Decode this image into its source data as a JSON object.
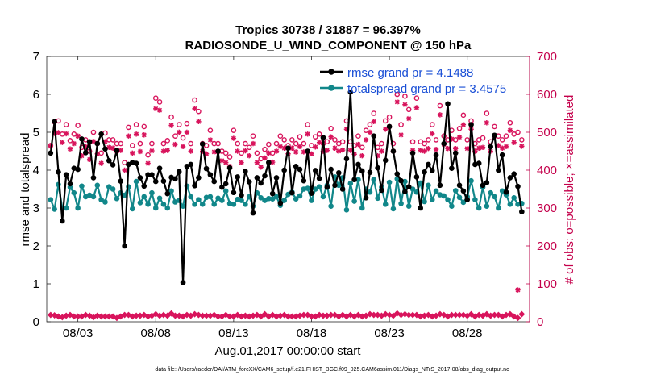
{
  "chart_data": {
    "type": "line",
    "title": "Tropics 30738 / 31887 = 96.397%",
    "subtitle": "RADIOSONDE_U_WIND_COMPONENT @ 150 hPa",
    "xlabel": "Aug.01,2017 00:00:00 start",
    "ylabel": "rmse and totalspread",
    "ylabel_right": "# of obs: o=possible; ×=assimilated",
    "footnote": "data file: /Users/raeder/DAI/ATM_forcXX/CAM6_setup/f.e21.FHIST_BGC.f09_025.CAM6assim.011/Diags_NTrS_2017-08/obs_diag_output.nc",
    "xlim": [
      1.0,
      32.0
    ],
    "ylim": [
      0,
      7
    ],
    "ylim_right": [
      0,
      700
    ],
    "x_ticks": [
      3,
      8,
      13,
      18,
      23,
      28
    ],
    "x_tick_labels": [
      "08/03",
      "08/08",
      "08/13",
      "08/18",
      "08/23",
      "08/28"
    ],
    "y_ticks": [
      0,
      1,
      2,
      3,
      4,
      5,
      6,
      7
    ],
    "y_tick_labels": [
      "0",
      "1",
      "2",
      "3",
      "4",
      "5",
      "6",
      "7"
    ],
    "y_ticks_right": [
      0,
      100,
      200,
      300,
      400,
      500,
      600,
      700
    ],
    "y_tick_labels_right": [
      "0",
      "100",
      "200",
      "300",
      "400",
      "500",
      "600",
      "700"
    ],
    "grid": false,
    "legend_position": "top-right",
    "colors": {
      "rmse": "#000000",
      "totalspread": "#11878a",
      "obs": "#d8145c",
      "legend_text": "#1a4fd6",
      "right_axis": "#c4004b"
    },
    "x": [
      1.25,
      1.5,
      1.75,
      2.0,
      2.25,
      2.5,
      2.75,
      3.0,
      3.25,
      3.5,
      3.75,
      4.0,
      4.25,
      4.5,
      4.75,
      5.0,
      5.25,
      5.5,
      5.75,
      6.0,
      6.25,
      6.5,
      6.75,
      7.0,
      7.25,
      7.5,
      7.75,
      8.0,
      8.25,
      8.5,
      8.75,
      9.0,
      9.25,
      9.5,
      9.75,
      10.0,
      10.25,
      10.5,
      10.75,
      11.0,
      11.25,
      11.5,
      11.75,
      12.0,
      12.25,
      12.5,
      12.75,
      13.0,
      13.25,
      13.5,
      13.75,
      14.0,
      14.25,
      14.5,
      14.75,
      15.0,
      15.25,
      15.5,
      15.75,
      16.0,
      16.25,
      16.5,
      16.75,
      17.0,
      17.25,
      17.5,
      17.75,
      18.0,
      18.25,
      18.5,
      18.75,
      19.0,
      19.25,
      19.5,
      19.75,
      20.0,
      20.25,
      20.5,
      20.75,
      21.0,
      21.25,
      21.5,
      21.75,
      22.0,
      22.25,
      22.5,
      22.75,
      23.0,
      23.25,
      23.5,
      23.75,
      24.0,
      24.25,
      24.5,
      24.75,
      25.0,
      25.25,
      25.5,
      25.75,
      26.0,
      26.25,
      26.5,
      26.75,
      27.0,
      27.25,
      27.5,
      27.75,
      28.0,
      28.25,
      28.5,
      28.75,
      29.0,
      29.25,
      29.5,
      29.75,
      30.0,
      30.25,
      30.5,
      30.75,
      31.0,
      31.25,
      31.5
    ],
    "series": [
      {
        "name": "rmse grand pr = 4.1488",
        "marker": "circle",
        "values": [
          4.45,
          5.28,
          3.95,
          2.66,
          3.88,
          3.64,
          4.05,
          4.02,
          4.82,
          4.46,
          4.75,
          3.8,
          4.7,
          4.95,
          4.56,
          4.25,
          4.14,
          4.52,
          3.71,
          2.0,
          4.15,
          4.2,
          4.18,
          3.8,
          3.58,
          3.88,
          3.88,
          3.7,
          4.05,
          3.71,
          3.38,
          3.81,
          3.77,
          3.96,
          1.03,
          4.1,
          4.15,
          3.59,
          3.8,
          4.69,
          4.04,
          3.88,
          3.7,
          4.5,
          3.55,
          3.64,
          4.06,
          3.41,
          3.82,
          3.34,
          3.97,
          3.69,
          2.87,
          3.8,
          3.66,
          3.85,
          4.2,
          3.38,
          3.8,
          3.13,
          4.0,
          4.58,
          3.4,
          4.1,
          4.02,
          3.72,
          4.5,
          3.39,
          3.99,
          3.78,
          4.86,
          3.55,
          4.02,
          3.6,
          3.93,
          3.5,
          4.3,
          6.06,
          3.75,
          4.15,
          3.98,
          3.27,
          3.94,
          4.9,
          4.06,
          3.47,
          4.26,
          5.15,
          4.5,
          3.9,
          3.72,
          3.43,
          3.56,
          4.45,
          3.82,
          3.0,
          3.95,
          4.15,
          3.99,
          4.4,
          3.6,
          4.7,
          5.75,
          4.05,
          4.45,
          3.6,
          3.45,
          3.22,
          5.2,
          4.15,
          4.18,
          3.6,
          3.67,
          4.62,
          4.92,
          4.0,
          4.4,
          3.42,
          3.8,
          3.9,
          3.57,
          2.9
        ]
      },
      {
        "name": "totalspread grand pr = 3.4575",
        "marker": "circle",
        "values": [
          3.22,
          2.97,
          3.62,
          3.0,
          3.0,
          3.55,
          3.4,
          3.0,
          3.58,
          3.3,
          3.34,
          3.3,
          3.6,
          3.22,
          3.16,
          3.56,
          3.5,
          3.25,
          3.4,
          3.34,
          3.56,
          2.98,
          3.7,
          3.14,
          3.3,
          3.1,
          3.4,
          3.0,
          3.26,
          3.1,
          3.0,
          3.45,
          3.16,
          3.2,
          3.05,
          3.58,
          3.3,
          3.1,
          3.22,
          3.1,
          3.28,
          3.3,
          3.1,
          3.26,
          3.2,
          3.45,
          3.12,
          3.1,
          3.23,
          3.2,
          3.1,
          3.3,
          3.05,
          3.4,
          3.27,
          3.2,
          3.25,
          3.24,
          3.3,
          3.07,
          3.2,
          3.36,
          3.42,
          3.24,
          3.32,
          3.5,
          3.52,
          3.2,
          3.5,
          3.56,
          3.3,
          3.6,
          3.05,
          3.82,
          3.6,
          3.8,
          2.95,
          3.65,
          3.18,
          3.75,
          3.0,
          3.5,
          3.42,
          3.75,
          3.26,
          3.55,
          3.1,
          3.68,
          2.98,
          3.77,
          3.12,
          3.7,
          3.05,
          3.5,
          3.42,
          3.66,
          3.17,
          3.6,
          3.22,
          3.45,
          3.35,
          3.32,
          3.22,
          3.05,
          3.46,
          3.28,
          3.15,
          3.3,
          3.72,
          3.22,
          3.0,
          3.55,
          3.05,
          3.4,
          3.3,
          3.0,
          3.45,
          3.35,
          3.1,
          3.27,
          3.1,
          3.12
        ]
      }
    ],
    "obs_possible": [
      465,
      527,
      530,
      495,
      520,
      478,
      495,
      518,
      460,
      480,
      450,
      500,
      470,
      445,
      498,
      480,
      480,
      470,
      470,
      420,
      513,
      465,
      520,
      470,
      515,
      440,
      470,
      590,
      580,
      470,
      478,
      540,
      490,
      520,
      485,
      523,
      470,
      585,
      555,
      470,
      465,
      505,
      470,
      470,
      450,
      445,
      435,
      505,
      470,
      445,
      470,
      460,
      490,
      445,
      430,
      455,
      468,
      445,
      470,
      490,
      480,
      465,
      480,
      470,
      488,
      470,
      520,
      465,
      488,
      495,
      470,
      475,
      510,
      480,
      470,
      475,
      530,
      475,
      465,
      490,
      460,
      505,
      520,
      550,
      460,
      470,
      530,
      540,
      470,
      600,
      520,
      595,
      560,
      475,
      590,
      475,
      470,
      480,
      520,
      480,
      570,
      490,
      480,
      505,
      480,
      510,
      545,
      480,
      530,
      470,
      480,
      485,
      550,
      475,
      515,
      490,
      480,
      490,
      525,
      495,
      500,
      480
    ],
    "obs_assimilated": [
      463,
      497,
      499,
      473,
      496,
      456,
      470,
      490,
      438,
      462,
      428,
      476,
      443,
      418,
      475,
      460,
      458,
      450,
      452,
      400,
      490,
      445,
      495,
      449,
      493,
      418,
      451,
      562,
      558,
      450,
      452,
      518,
      468,
      500,
      462,
      500,
      450,
      562,
      528,
      450,
      443,
      480,
      448,
      449,
      425,
      420,
      410,
      484,
      450,
      420,
      451,
      438,
      470,
      420,
      408,
      432,
      445,
      421,
      450,
      462,
      458,
      443,
      458,
      448,
      462,
      448,
      495,
      443,
      461,
      473,
      450,
      452,
      488,
      458,
      450,
      453,
      508,
      452,
      442,
      468,
      438,
      480,
      500,
      528,
      438,
      450,
      508,
      515,
      450,
      580,
      493,
      573,
      536,
      452,
      565,
      452,
      450,
      457,
      496,
      455,
      546,
      468,
      457,
      482,
      457,
      487,
      520,
      457,
      508,
      450,
      458,
      460,
      525,
      450,
      490,
      465,
      458,
      462,
      505,
      473,
      84,
      463
    ],
    "obs_bottom": [
      18,
      17,
      14,
      12,
      16,
      18,
      14,
      14,
      14,
      18,
      16,
      12,
      16,
      14,
      14,
      14,
      14,
      10,
      14,
      18,
      18,
      14,
      16,
      16,
      18,
      14,
      16,
      20,
      16,
      18,
      16,
      22,
      16,
      16,
      14,
      18,
      16,
      20,
      18,
      16,
      16,
      16,
      18,
      14,
      14,
      18,
      14,
      14,
      18,
      14,
      16,
      14,
      16,
      18,
      14,
      20,
      14,
      18,
      14,
      16,
      18,
      14,
      14,
      14,
      16,
      18,
      18,
      14,
      14,
      18,
      16,
      16,
      18,
      18,
      14,
      18,
      14,
      18,
      14,
      18,
      14,
      16,
      20,
      18,
      18,
      16,
      20,
      18,
      16,
      22,
      18,
      20,
      18,
      18,
      18,
      14,
      16,
      18,
      14,
      16,
      20,
      18,
      14,
      18,
      18,
      18,
      18,
      16,
      20,
      14,
      18,
      16,
      20,
      16,
      18,
      18,
      14,
      18,
      20,
      14,
      10,
      20
    ]
  }
}
